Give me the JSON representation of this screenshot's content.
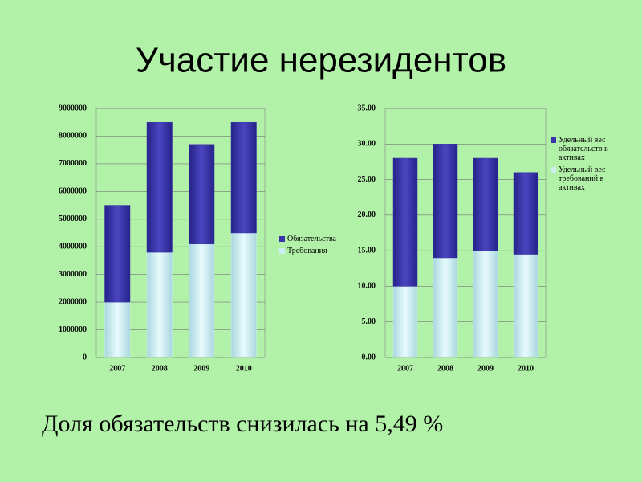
{
  "title": "Участие нерезидентов",
  "footer": "Доля обязательств снизилась на 5,49 %",
  "chart_data": [
    {
      "type": "bar",
      "stacked": true,
      "categories": [
        "2007",
        "2008",
        "2009",
        "2010"
      ],
      "series": [
        {
          "name": "Требования",
          "color": "#cfeef2",
          "values": [
            2000000,
            3800000,
            4100000,
            4500000
          ]
        },
        {
          "name": "Обязательства",
          "color": "#3a36a8",
          "values": [
            3500000,
            4700000,
            3600000,
            4000000
          ]
        }
      ],
      "ylim": [
        0,
        9000000
      ],
      "yticks": [
        0,
        1000000,
        2000000,
        3000000,
        4000000,
        5000000,
        6000000,
        7000000,
        8000000,
        9000000
      ],
      "grid": true
    },
    {
      "type": "bar",
      "stacked": true,
      "categories": [
        "2007",
        "2008",
        "2009",
        "2010"
      ],
      "series": [
        {
          "name": "Удельный вес требований в активах",
          "color": "#cfeef2",
          "values": [
            10,
            14,
            15,
            14.5
          ]
        },
        {
          "name": "Удельный вес обязательств в активах",
          "color": "#3a36a8",
          "values": [
            18,
            16,
            13,
            11.5
          ]
        }
      ],
      "ylim": [
        0,
        35
      ],
      "yticks": [
        {
          "value": 0,
          "label": "0.00"
        },
        {
          "value": 5,
          "label": "5.00"
        },
        {
          "value": 10,
          "label": "10.00"
        },
        {
          "value": 15,
          "label": "15.00"
        },
        {
          "value": 20,
          "label": "20.00"
        },
        {
          "value": 25,
          "label": "25.00"
        },
        {
          "value": 30,
          "label": "30.00"
        },
        {
          "value": 35,
          "label": "35.00"
        }
      ],
      "grid": true
    }
  ]
}
